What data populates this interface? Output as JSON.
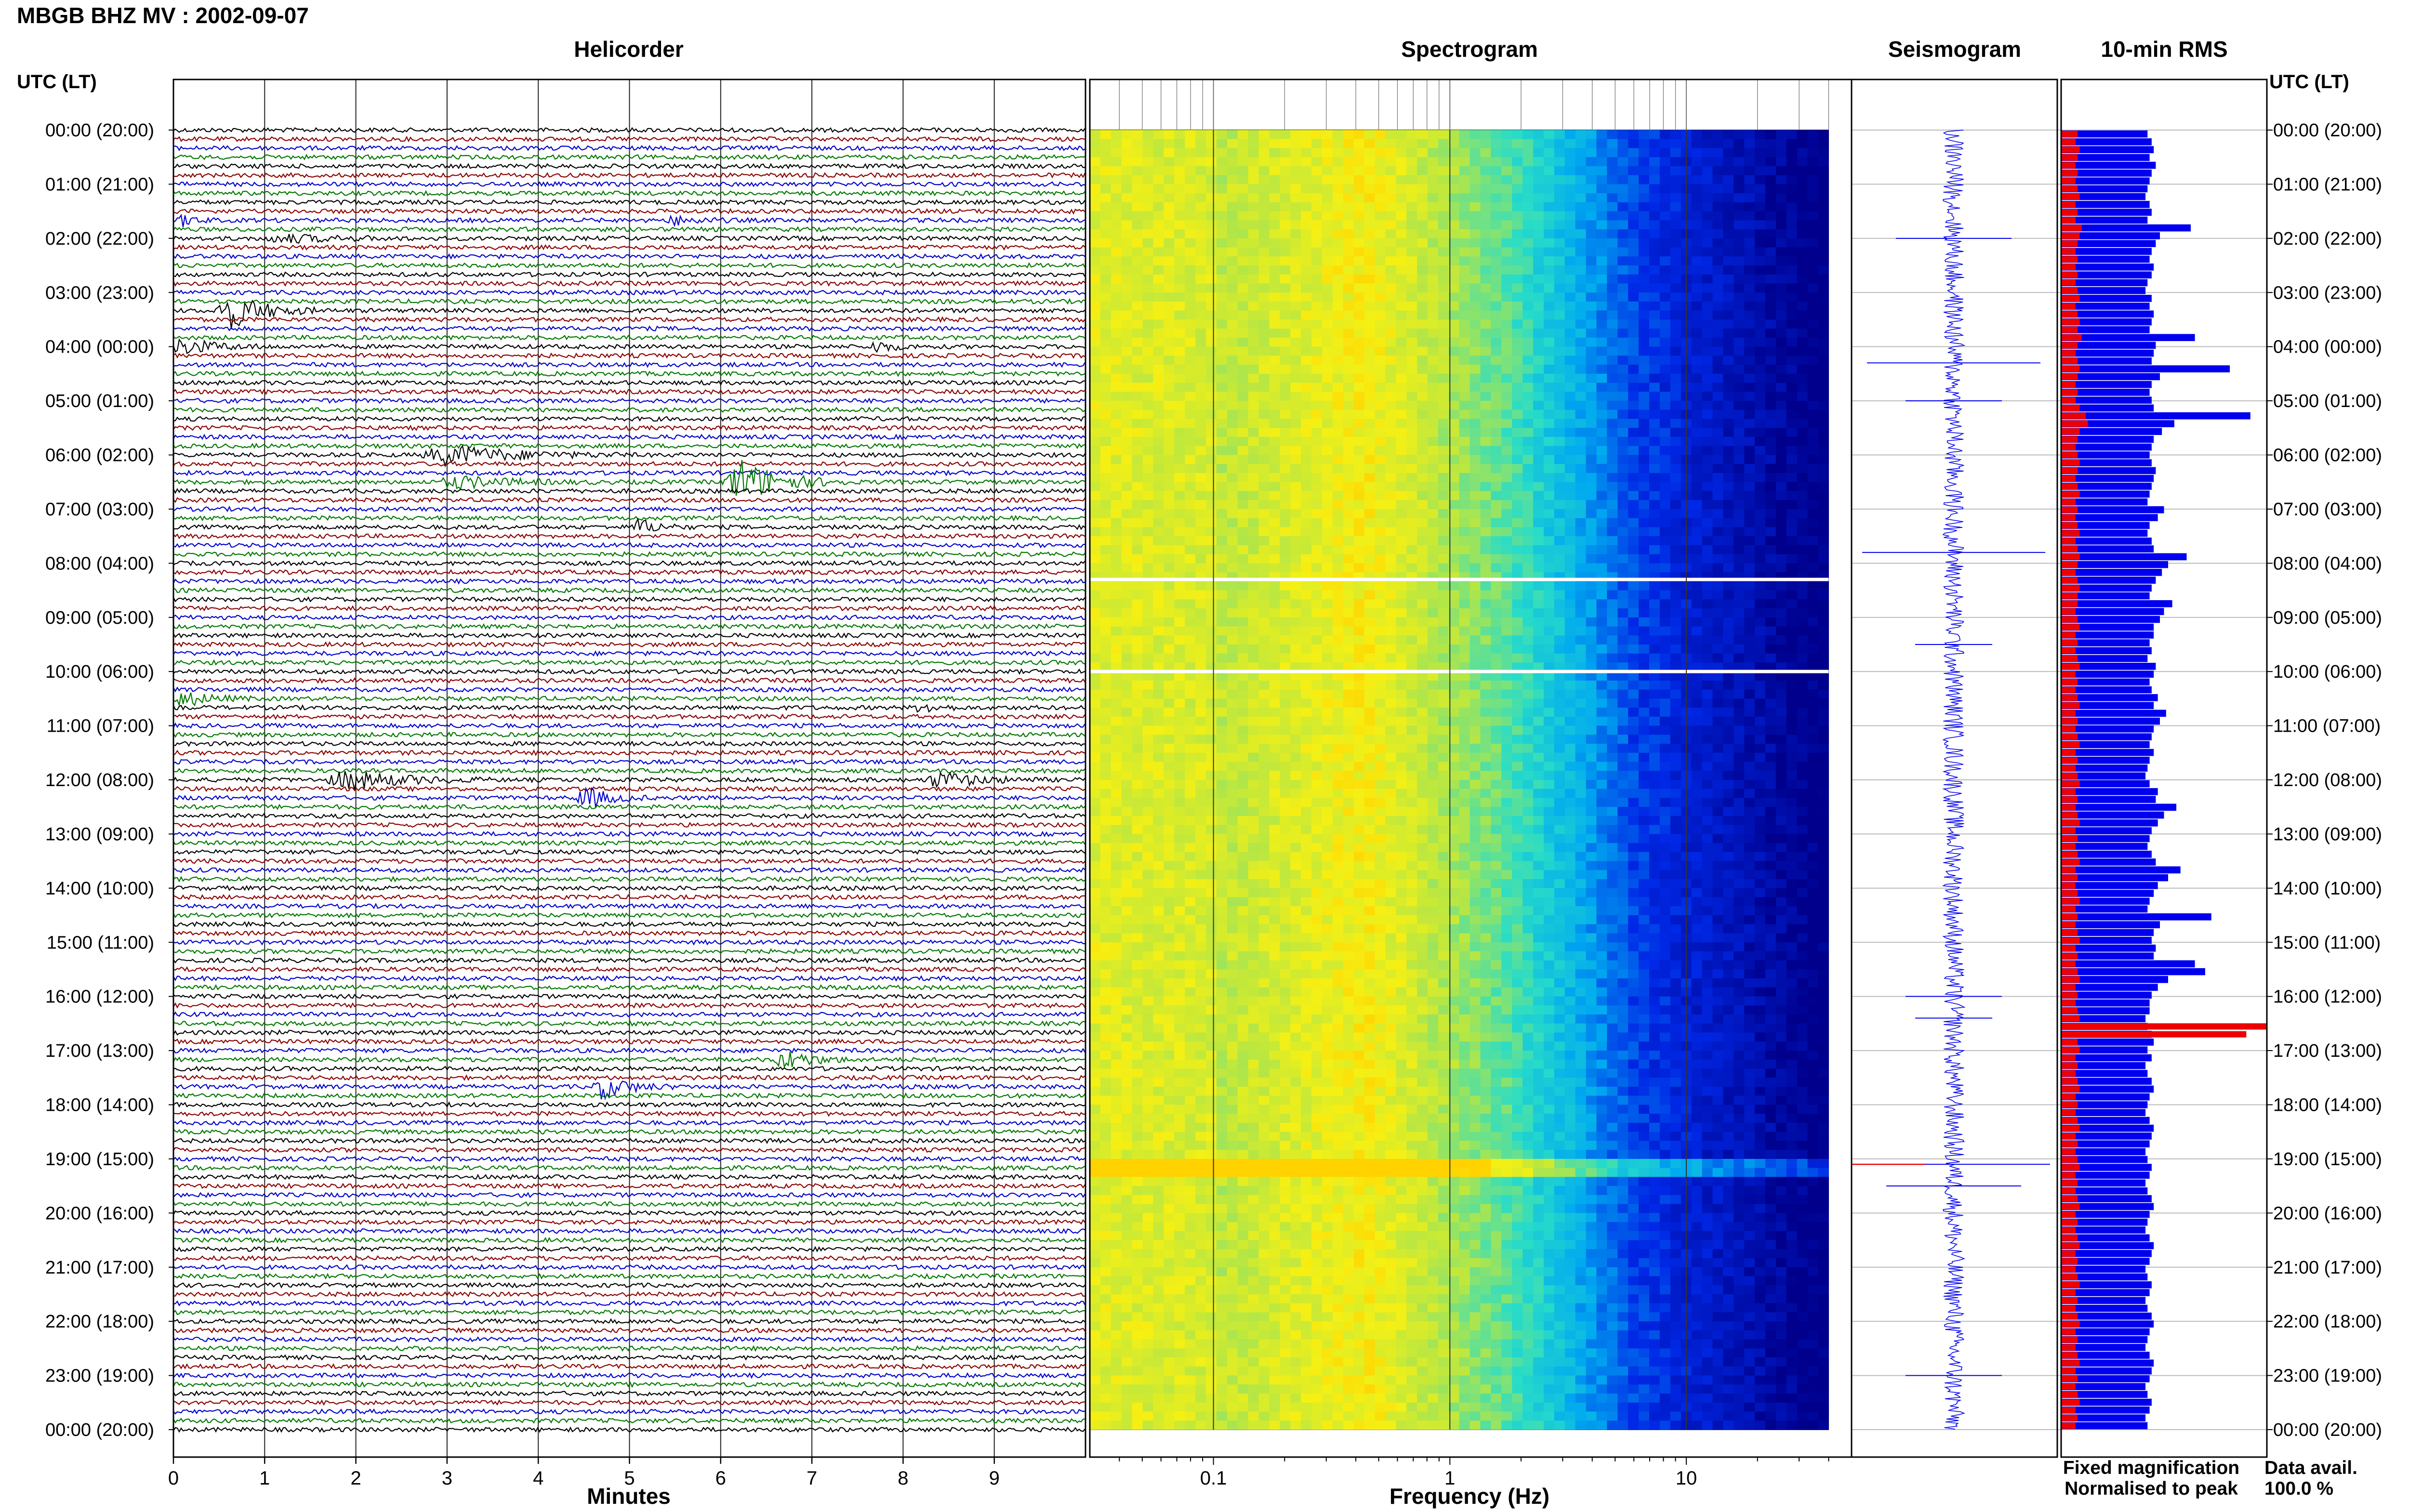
{
  "page": {
    "title": "MBGB BHZ MV : 2002-09-07",
    "time_axis_label": "UTC (LT)"
  },
  "panels": {
    "helicorder": "Helicorder",
    "spectrogram": "Spectrogram",
    "seismogram": "Seismogram",
    "rms": "10-min RMS"
  },
  "legend": {
    "fixed": "Fixed magnification",
    "normalised": "Normalised to peak",
    "data_avail_label": "Data avail.",
    "data_avail_value": "100.0 %"
  },
  "colors": {
    "trace_cycle": [
      "#000000",
      "#8b0000",
      "#0000cc",
      "#007700"
    ],
    "fixed_magnification": "#0000ee",
    "normalised_to_peak": "#ee0000",
    "spectrogram_low": "#00008b",
    "spectrogram_high": "#ffff00"
  },
  "chart_data": [
    {
      "type": "line",
      "name": "helicorder",
      "xlabel": "Minutes",
      "x_ticks": [
        0,
        1,
        2,
        3,
        4,
        5,
        6,
        7,
        8,
        9
      ],
      "xlim": [
        0,
        10
      ],
      "hour_labels": [
        "00:00 (20:00)",
        "01:00 (21:00)",
        "02:00 (22:00)",
        "03:00 (23:00)",
        "04:00 (00:00)",
        "05:00 (01:00)",
        "06:00 (02:00)",
        "07:00 (03:00)",
        "08:00 (04:00)",
        "09:00 (05:00)",
        "10:00 (06:00)",
        "11:00 (07:00)",
        "12:00 (08:00)",
        "13:00 (09:00)",
        "14:00 (10:00)",
        "15:00 (11:00)",
        "16:00 (12:00)",
        "17:00 (13:00)",
        "18:00 (14:00)",
        "19:00 (15:00)",
        "20:00 (16:00)",
        "21:00 (17:00)",
        "22:00 (18:00)",
        "23:00 (19:00)",
        "00:00 (20:00)"
      ],
      "lines_per_hour": 6,
      "events": [
        {
          "row": 10,
          "minute": 0.1,
          "dur": 0.4,
          "amp": 3
        },
        {
          "row": 12,
          "minute": 1.2,
          "dur": 1.5,
          "amp": 2
        },
        {
          "row": 10,
          "minute": 5.5,
          "dur": 0.8,
          "amp": 2
        },
        {
          "row": 20,
          "minute": 0.6,
          "dur": 1.0,
          "amp": 10
        },
        {
          "row": 24,
          "minute": 0.1,
          "dur": 1.0,
          "amp": 4
        },
        {
          "row": 24,
          "minute": 7.7,
          "dur": 0.5,
          "amp": 3
        },
        {
          "row": 36,
          "minute": 3.0,
          "dur": 2.0,
          "amp": 5
        },
        {
          "row": 39,
          "minute": 6.2,
          "dur": 1.2,
          "amp": 12
        },
        {
          "row": 39,
          "minute": 3.1,
          "dur": 1.6,
          "amp": 3
        },
        {
          "row": 44,
          "minute": 5.1,
          "dur": 0.6,
          "amp": 4
        },
        {
          "row": 63,
          "minute": 0.1,
          "dur": 0.8,
          "amp": 4
        },
        {
          "row": 64,
          "minute": 8.2,
          "dur": 0.5,
          "amp": 3
        },
        {
          "row": 72,
          "minute": 1.9,
          "dur": 1.6,
          "amp": 5
        },
        {
          "row": 72,
          "minute": 8.4,
          "dur": 1.2,
          "amp": 4
        },
        {
          "row": 74,
          "minute": 4.5,
          "dur": 0.7,
          "amp": 6
        },
        {
          "row": 103,
          "minute": 6.7,
          "dur": 0.8,
          "amp": 5
        },
        {
          "row": 106,
          "minute": 4.7,
          "dur": 0.8,
          "amp": 6
        }
      ]
    },
    {
      "type": "heatmap",
      "name": "spectrogram",
      "xlabel": "Frequency (Hz)",
      "x_scale": "log",
      "x_ticks": [
        0.1,
        1,
        10
      ],
      "xlim": [
        0.03,
        50
      ],
      "data_fmax": 40
    },
    {
      "type": "line",
      "name": "seismogram",
      "events": [
        {
          "hour": 2.0,
          "amp": 0.6
        },
        {
          "hour": 4.3,
          "amp": 0.9
        },
        {
          "hour": 5.0,
          "amp": 0.5
        },
        {
          "hour": 7.8,
          "amp": 0.95
        },
        {
          "hour": 9.5,
          "amp": 0.4
        },
        {
          "hour": 16.0,
          "amp": 0.5
        },
        {
          "hour": 16.4,
          "amp": 0.4
        },
        {
          "hour": 19.1,
          "amp": 1.0
        },
        {
          "hour": 19.5,
          "amp": 0.7
        },
        {
          "hour": 23.0,
          "amp": 0.5
        }
      ]
    },
    {
      "type": "bar",
      "name": "10-min RMS",
      "series": [
        {
          "name": "Fixed magnification",
          "values": [
            0.42,
            0.44,
            0.45,
            0.43,
            0.46,
            0.44,
            0.43,
            0.42,
            0.41,
            0.43,
            0.44,
            0.42,
            0.63,
            0.48,
            0.46,
            0.44,
            0.43,
            0.45,
            0.44,
            0.42,
            0.41,
            0.44,
            0.43,
            0.45,
            0.44,
            0.43,
            0.65,
            0.46,
            0.45,
            0.44,
            0.82,
            0.48,
            0.44,
            0.43,
            0.44,
            0.45,
            0.92,
            0.55,
            0.49,
            0.45,
            0.44,
            0.43,
            0.44,
            0.46,
            0.45,
            0.44,
            0.43,
            0.42,
            0.5,
            0.47,
            0.43,
            0.42,
            0.44,
            0.45,
            0.61,
            0.52,
            0.49,
            0.46,
            0.44,
            0.43,
            0.54,
            0.5,
            0.48,
            0.45,
            0.45,
            0.43,
            0.44,
            0.42,
            0.46,
            0.45,
            0.43,
            0.44,
            0.47,
            0.45,
            0.51,
            0.48,
            0.45,
            0.44,
            0.43,
            0.45,
            0.43,
            0.42,
            0.41,
            0.43,
            0.47,
            0.46,
            0.56,
            0.5,
            0.47,
            0.44,
            0.43,
            0.42,
            0.44,
            0.46,
            0.58,
            0.52,
            0.47,
            0.45,
            0.43,
            0.42,
            0.73,
            0.48,
            0.45,
            0.44,
            0.46,
            0.45,
            0.65,
            0.7,
            0.52,
            0.47,
            0.44,
            0.43,
            0.43,
            0.41,
            0.42,
            0.44,
            0.45,
            0.42,
            0.44,
            0.41,
            0.42,
            0.44,
            0.45,
            0.43,
            0.42,
            0.41,
            0.43,
            0.45,
            0.44,
            0.43,
            0.41,
            0.42,
            0.44,
            0.43,
            0.41,
            0.42,
            0.44,
            0.45,
            0.43,
            0.42,
            0.41,
            0.43,
            0.45,
            0.44,
            0.43,
            0.41,
            0.42,
            0.44,
            0.43,
            0.41,
            0.42,
            0.44,
            0.45,
            0.43,
            0.42,
            0.41,
            0.43,
            0.45,
            0.44,
            0.43,
            0.41,
            0.42,
            0.44,
            0.43,
            0.41,
            0.42
          ]
        },
        {
          "name": "Normalised to peak",
          "values": [
            0.08,
            0.07,
            0.09,
            0.08,
            0.07,
            0.08,
            0.07,
            0.08,
            0.09,
            0.07,
            0.08,
            0.07,
            0.1,
            0.09,
            0.08,
            0.07,
            0.08,
            0.07,
            0.08,
            0.07,
            0.08,
            0.09,
            0.07,
            0.08,
            0.09,
            0.08,
            0.1,
            0.08,
            0.07,
            0.08,
            0.09,
            0.08,
            0.07,
            0.08,
            0.07,
            0.09,
            0.12,
            0.13,
            0.09,
            0.08,
            0.07,
            0.08,
            0.09,
            0.08,
            0.07,
            0.08,
            0.09,
            0.07,
            0.08,
            0.07,
            0.08,
            0.09,
            0.07,
            0.08,
            0.09,
            0.08,
            0.07,
            0.08,
            0.09,
            0.08,
            0.08,
            0.07,
            0.08,
            0.09,
            0.07,
            0.08,
            0.07,
            0.08,
            0.09,
            0.07,
            0.08,
            0.07,
            0.08,
            0.09,
            0.07,
            0.08,
            0.07,
            0.08,
            0.09,
            0.07,
            0.08,
            0.07,
            0.08,
            0.09,
            0.07,
            0.08,
            0.07,
            0.08,
            0.09,
            0.07,
            0.08,
            0.07,
            0.08,
            0.09,
            0.07,
            0.08,
            0.07,
            0.08,
            0.09,
            0.07,
            0.08,
            0.07,
            0.08,
            0.09,
            0.07,
            0.08,
            0.07,
            0.08,
            0.09,
            0.07,
            0.08,
            0.07,
            0.08,
            0.09,
            1.0,
            0.9,
            0.08,
            0.09,
            0.07,
            0.08,
            0.07,
            0.08,
            0.09,
            0.07,
            0.08,
            0.07,
            0.08,
            0.09,
            0.07,
            0.08,
            0.07,
            0.08,
            0.09,
            0.07,
            0.08,
            0.07,
            0.08,
            0.09,
            0.07,
            0.08,
            0.07,
            0.08,
            0.09,
            0.07,
            0.08,
            0.07,
            0.08,
            0.09,
            0.07,
            0.08,
            0.07,
            0.08,
            0.09,
            0.07,
            0.08,
            0.07,
            0.08,
            0.09,
            0.07,
            0.08,
            0.07,
            0.08,
            0.09,
            0.07,
            0.08,
            0.07
          ]
        }
      ]
    }
  ]
}
